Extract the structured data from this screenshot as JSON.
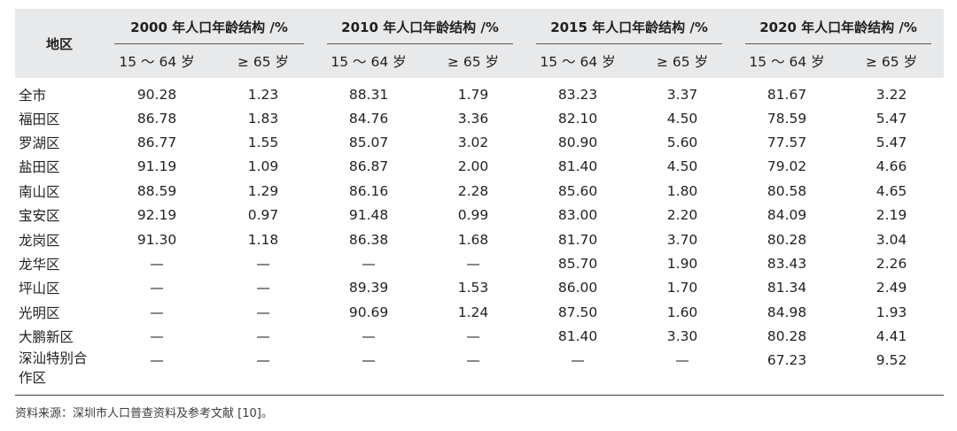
{
  "table": {
    "region_header": "地区",
    "groups": [
      "2000 年人口年龄结构 /%",
      "2010 年人口年龄结构 /%",
      "2015 年人口年龄结构 /%",
      "2020 年人口年龄结构 /%"
    ],
    "subheaders": [
      "15 ～ 64 岁",
      "≥ 65 岁",
      "15 ～ 64 岁",
      "≥ 65 岁",
      "15 ～ 64 岁",
      "≥ 65 岁",
      "15 ～ 64 岁",
      "≥ 65 岁"
    ],
    "rows": [
      {
        "region": "全市",
        "values": [
          "90.28",
          "1.23",
          "88.31",
          "1.79",
          "83.23",
          "3.37",
          "81.67",
          "3.22"
        ]
      },
      {
        "region": "福田区",
        "values": [
          "86.78",
          "1.83",
          "84.76",
          "3.36",
          "82.10",
          "4.50",
          "78.59",
          "5.47"
        ]
      },
      {
        "region": "罗湖区",
        "values": [
          "86.77",
          "1.55",
          "85.07",
          "3.02",
          "80.90",
          "5.60",
          "77.57",
          "5.47"
        ]
      },
      {
        "region": "盐田区",
        "values": [
          "91.19",
          "1.09",
          "86.87",
          "2.00",
          "81.40",
          "4.50",
          "79.02",
          "4.66"
        ]
      },
      {
        "region": "南山区",
        "values": [
          "88.59",
          "1.29",
          "86.16",
          "2.28",
          "85.60",
          "1.80",
          "80.58",
          "4.65"
        ]
      },
      {
        "region": "宝安区",
        "values": [
          "92.19",
          "0.97",
          "91.48",
          "0.99",
          "83.00",
          "2.20",
          "84.09",
          "2.19"
        ]
      },
      {
        "region": "龙岗区",
        "values": [
          "91.30",
          "1.18",
          "86.38",
          "1.68",
          "81.70",
          "3.70",
          "80.28",
          "3.04"
        ]
      },
      {
        "region": "龙华区",
        "values": [
          "—",
          "—",
          "—",
          "—",
          "85.70",
          "1.90",
          "83.43",
          "2.26"
        ]
      },
      {
        "region": "坪山区",
        "values": [
          "—",
          "—",
          "89.39",
          "1.53",
          "86.00",
          "1.70",
          "81.34",
          "2.49"
        ]
      },
      {
        "region": "光明区",
        "values": [
          "—",
          "—",
          "90.69",
          "1.24",
          "87.50",
          "1.60",
          "84.98",
          "1.93"
        ]
      },
      {
        "region": "大鹏新区",
        "values": [
          "—",
          "—",
          "—",
          "—",
          "81.40",
          "3.30",
          "80.28",
          "4.41"
        ]
      },
      {
        "region": "深汕特别合作区",
        "values": [
          "—",
          "—",
          "—",
          "—",
          "—",
          "—",
          "67.23",
          "9.52"
        ]
      }
    ]
  },
  "source_note": "资料来源：深圳市人口普查资料及参考文献 [10]。"
}
